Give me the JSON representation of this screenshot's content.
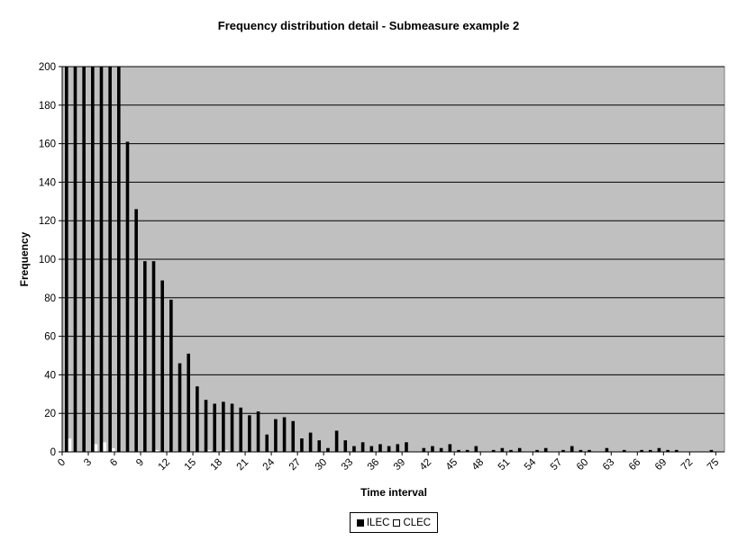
{
  "chart_data": {
    "type": "bar",
    "title": "Frequency distribution detail - Submeasure example 2",
    "xlabel": "Time interval",
    "ylabel": "Frequency",
    "ylim": [
      0,
      200
    ],
    "yticks": [
      "0",
      "20",
      "40",
      "60",
      "80",
      "100",
      "120",
      "140",
      "160",
      "180",
      "200"
    ],
    "xtick_labels": [
      "0",
      "3",
      "6",
      "9",
      "12",
      "15",
      "18",
      "21",
      "24",
      "27",
      "30",
      "33",
      "36",
      "39",
      "42",
      "45",
      "48",
      "51",
      "54",
      "57",
      "60",
      "63",
      "66",
      "69",
      "72",
      "75"
    ],
    "categories": [
      0,
      1,
      2,
      3,
      4,
      5,
      6,
      7,
      8,
      9,
      10,
      11,
      12,
      13,
      14,
      15,
      16,
      17,
      18,
      19,
      20,
      21,
      22,
      23,
      24,
      25,
      26,
      27,
      28,
      29,
      30,
      31,
      32,
      33,
      34,
      35,
      36,
      37,
      38,
      39,
      40,
      41,
      42,
      43,
      44,
      45,
      46,
      47,
      48,
      49,
      50,
      51,
      52,
      53,
      54,
      55,
      56,
      57,
      58,
      59,
      60,
      61,
      62,
      63,
      64,
      65,
      66,
      67,
      68,
      69,
      70,
      71,
      72,
      73,
      74,
      75
    ],
    "series": [
      {
        "name": "ILEC",
        "color": "#000000",
        "values": [
          200,
          200,
          200,
          200,
          200,
          200,
          200,
          161,
          126,
          99,
          99,
          89,
          79,
          46,
          51,
          34,
          27,
          25,
          26,
          25,
          23,
          19,
          21,
          9,
          17,
          18,
          16,
          7,
          10,
          6,
          2,
          11,
          6,
          3,
          5,
          3,
          4,
          3,
          4,
          5,
          0,
          2,
          3,
          2,
          4,
          1,
          1,
          3,
          0,
          1,
          2,
          1,
          2,
          0,
          1,
          2,
          0,
          1,
          3,
          1,
          1,
          0,
          2,
          0,
          1,
          0,
          1,
          1,
          2,
          1,
          1,
          0,
          0,
          0,
          1,
          0
        ]
      },
      {
        "name": "CLEC",
        "color": "#ffffff",
        "values": [
          7,
          0,
          0,
          4,
          5,
          2,
          0,
          0,
          0,
          0,
          1,
          0,
          0,
          0,
          0,
          0,
          1,
          0,
          1,
          0,
          0,
          0,
          0,
          0,
          0,
          0,
          0,
          0,
          0,
          0,
          0,
          0,
          0,
          0,
          0,
          0,
          0,
          0,
          0,
          0,
          0,
          0,
          0,
          0,
          0,
          0,
          0,
          0,
          0,
          0,
          0,
          0,
          0,
          0,
          0,
          0,
          0,
          0,
          0,
          0,
          0,
          0,
          0,
          0,
          0,
          0,
          0,
          0,
          0,
          0,
          0,
          0,
          0,
          0,
          0,
          0
        ]
      }
    ],
    "grid": true,
    "plot_background": "#c0c0c0",
    "legend_position": "bottom"
  }
}
